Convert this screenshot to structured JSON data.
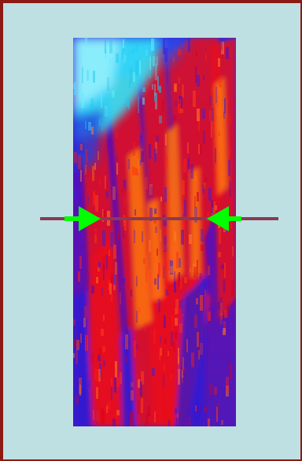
{
  "palette": {
    "frame_border": "#8b1a12",
    "background": "#bfe0e2",
    "marker_line": "#8a3a52",
    "arrow": "#00ff00"
  },
  "heatmap": {
    "colormap": [
      "#00ffff",
      "#0000cc",
      "#4b00c8",
      "#ff0000",
      "#ff8000"
    ]
  },
  "marker": {
    "icons": [
      "arrow-right-icon",
      "arrow-left-icon"
    ]
  }
}
